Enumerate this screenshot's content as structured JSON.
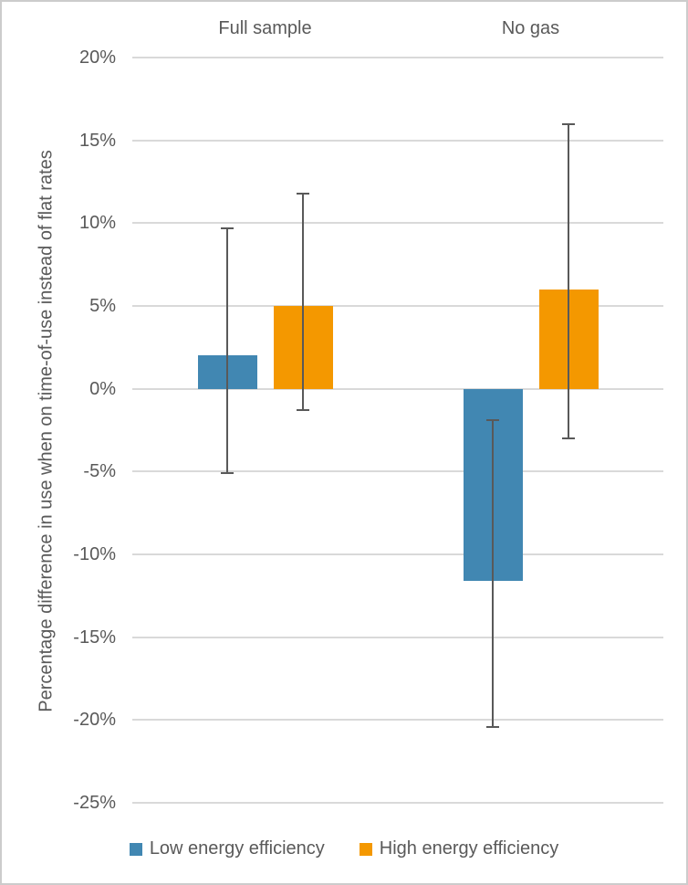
{
  "figure": {
    "background": "#ffffff",
    "border_color": "#cccccc"
  },
  "chart_data": {
    "type": "bar",
    "title": "",
    "xlabel": "",
    "ylabel": "Percentage difference in use when on time-of-use instead of flat rates",
    "categories": [
      "Full sample",
      "No gas"
    ],
    "series": [
      {
        "name": "Low energy efficiency",
        "color": "#4187B2",
        "values": [
          2.0,
          -11.6
        ],
        "error_min": [
          -5.1,
          -20.4
        ],
        "error_max": [
          9.7,
          -1.9
        ]
      },
      {
        "name": "High energy efficiency",
        "color": "#F49800",
        "values": [
          5.0,
          6.0
        ],
        "error_min": [
          -1.3,
          -3.0
        ],
        "error_max": [
          11.8,
          16.0
        ]
      }
    ],
    "ylim": [
      -25,
      20
    ],
    "ytick_step": 5,
    "yticks": [
      {
        "label": "20%",
        "value": 20
      },
      {
        "label": "15%",
        "value": 15
      },
      {
        "label": "10%",
        "value": 10
      },
      {
        "label": "5%",
        "value": 5
      },
      {
        "label": "0%",
        "value": 0
      },
      {
        "label": "-5%",
        "value": -5
      },
      {
        "label": "-10%",
        "value": -10
      },
      {
        "label": "-15%",
        "value": -15
      },
      {
        "label": "-20%",
        "value": -20
      },
      {
        "label": "-25%",
        "value": -25
      }
    ],
    "grid": true,
    "legend_position": "bottom",
    "colors": {
      "gridline": "#d9d9d9",
      "text": "#595959",
      "error_bar": "#595959"
    }
  }
}
